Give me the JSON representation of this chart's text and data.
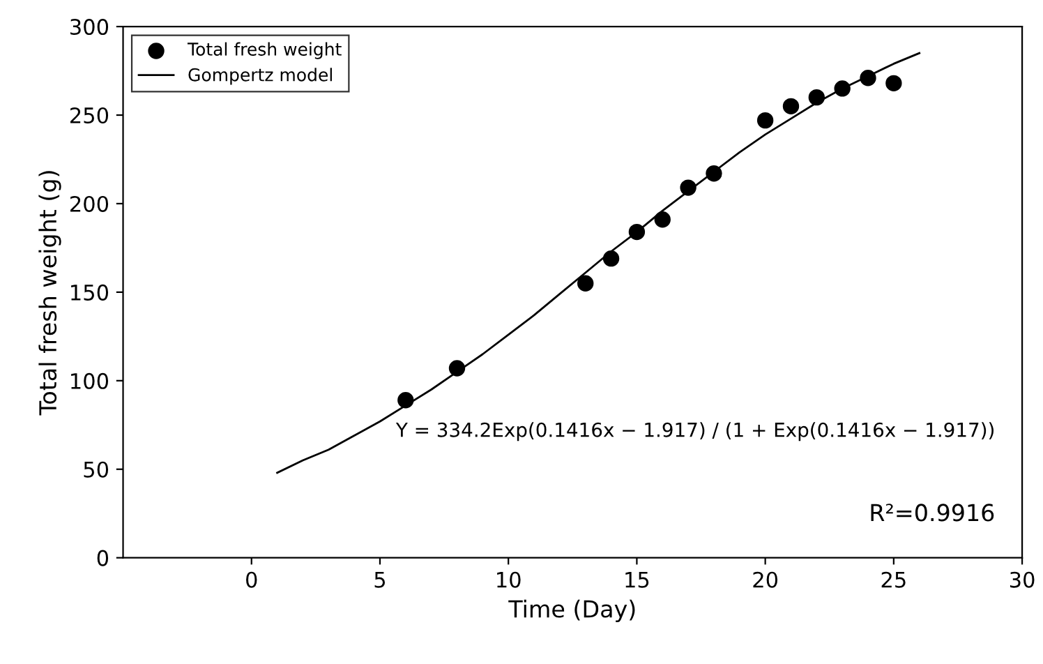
{
  "chart_data": {
    "type": "scatter",
    "xlabel": "Time (Day)",
    "ylabel": "Total fresh weight (g)",
    "xlim": [
      -5,
      30
    ],
    "xticks": [
      0,
      5,
      10,
      15,
      20,
      25,
      30
    ],
    "ylim": [
      0,
      300
    ],
    "yticks": [
      0,
      50,
      100,
      150,
      200,
      250,
      300
    ],
    "legend": "top left",
    "grid": false,
    "series": [
      {
        "name": "Total fresh weight",
        "marker": "circle",
        "color": "#000000",
        "x": [
          6,
          8,
          13,
          14,
          15,
          16,
          17,
          18,
          20,
          21,
          22,
          23,
          24,
          25
        ],
        "values": [
          89,
          107,
          155,
          169,
          184,
          191,
          209,
          217,
          247,
          255,
          260,
          265,
          271,
          268
        ]
      },
      {
        "name": "Gompertz model",
        "type": "line",
        "marker": "none",
        "line_style": "solid",
        "color": "#000000",
        "x": [
          1,
          2,
          3,
          4,
          5,
          6,
          7,
          8,
          9,
          10,
          11,
          12,
          13,
          14,
          15,
          16,
          17,
          18,
          19,
          20,
          21,
          22,
          23,
          24,
          25,
          26
        ],
        "values": [
          48,
          55,
          61,
          69,
          77,
          86,
          95,
          105,
          115,
          126,
          137,
          149,
          161,
          173,
          184,
          196,
          207,
          218,
          229,
          239,
          248,
          257,
          265,
          272,
          279,
          285
        ]
      }
    ],
    "annotations": [
      "Y = 334.2Exp(0.1416x − 1.917) / (1 + Exp(0.1416x − 1.917))",
      "R²=0.9916"
    ]
  }
}
